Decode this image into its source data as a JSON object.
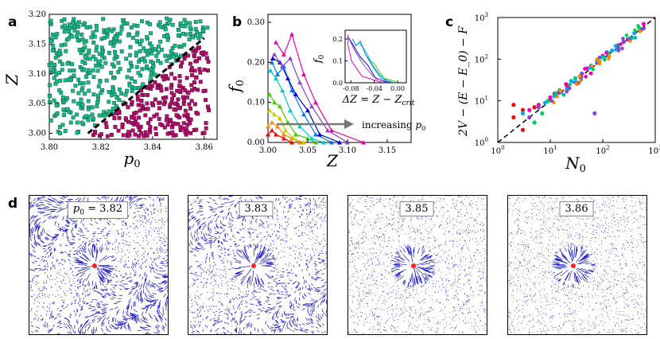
{
  "panels": {
    "a": {
      "label": "a",
      "xlabel": "p_0",
      "ylabel": "Z",
      "xticks": [
        "3.80",
        "3.82",
        "3.84",
        "3.86"
      ],
      "yticks": [
        "3.00",
        "3.05",
        "3.10",
        "3.15",
        "3.20"
      ]
    },
    "b": {
      "label": "b",
      "xlabel": "Z",
      "ylabel": "f_0",
      "xticks": [
        "3.00",
        "3.05",
        "3.10",
        "3.15"
      ],
      "yticks": [
        "0.00",
        "0.10",
        "0.20",
        "0.30"
      ],
      "arrow_text": "increasing p_0",
      "inset": {
        "xlabel": "ΔZ = Z − Z_crit",
        "ylabel": "f_0",
        "xticks": [
          "-0.08",
          "-0.04",
          "0.00"
        ],
        "yticks": [
          "0.0",
          "0.1",
          "0.2"
        ]
      }
    },
    "c": {
      "label": "c",
      "xlabel": "N_0",
      "ylabel": "2V − (E − E_0) − F",
      "xticks": [
        "10^0",
        "10^1",
        "10^2",
        "10^3"
      ],
      "yticks": [
        "10^0",
        "10^1",
        "10^2",
        "10^3"
      ]
    },
    "d": {
      "label": "d",
      "fields": [
        {
          "p0": "p_0 = 3.82"
        },
        {
          "p0": "3.83"
        },
        {
          "p0": "3.85"
        },
        {
          "p0": "3.86"
        }
      ]
    }
  },
  "chart_data": [
    {
      "type": "scatter",
      "panel": "a",
      "xlim": [
        3.8,
        3.865
      ],
      "ylim": [
        2.99,
        3.2
      ],
      "series": [],
      "boundary_line": {
        "x": [
          3.815,
          3.86
        ],
        "y": [
          3.0,
          3.16
        ],
        "style": "dashed"
      }
    },
    {
      "type": "line",
      "panel": "b",
      "xlim": [
        3.0,
        3.18
      ],
      "ylim": [
        0.0,
        0.32
      ],
      "series": [
        {
          "color": "#ff0000",
          "x": [
            3.0,
            3.005,
            3.01,
            3.02,
            3.03
          ],
          "y": [
            0.02,
            0.03,
            0.02,
            0.01,
            0.0
          ]
        },
        {
          "color": "#ff8800",
          "x": [
            3.0,
            3.005,
            3.012,
            3.02,
            3.03,
            3.04
          ],
          "y": [
            0.04,
            0.05,
            0.04,
            0.02,
            0.01,
            0.0
          ]
        },
        {
          "color": "#cccc00",
          "x": [
            3.002,
            3.008,
            3.015,
            3.022,
            3.032,
            3.045
          ],
          "y": [
            0.08,
            0.07,
            0.06,
            0.03,
            0.01,
            0.0
          ]
        },
        {
          "color": "#44cc00",
          "x": [
            3.002,
            3.008,
            3.015,
            3.025,
            3.035,
            3.05,
            3.06
          ],
          "y": [
            0.12,
            0.1,
            0.09,
            0.05,
            0.02,
            0.01,
            0.0
          ]
        },
        {
          "color": "#00cccc",
          "x": [
            3.003,
            3.01,
            3.018,
            3.028,
            3.04,
            3.055,
            3.07
          ],
          "y": [
            0.18,
            0.16,
            0.13,
            0.08,
            0.04,
            0.01,
            0.0
          ]
        },
        {
          "color": "#0077ff",
          "x": [
            3.005,
            3.012,
            3.02,
            3.03,
            3.045,
            3.06,
            3.08
          ],
          "y": [
            0.2,
            0.17,
            0.19,
            0.13,
            0.07,
            0.02,
            0.0
          ]
        },
        {
          "color": "#0000cc",
          "x": [
            3.006,
            3.015,
            3.025,
            3.035,
            3.05,
            3.065,
            3.09
          ],
          "y": [
            0.21,
            0.2,
            0.16,
            0.12,
            0.08,
            0.02,
            0.0
          ]
        },
        {
          "color": "#8844cc",
          "x": [
            3.008,
            3.018,
            3.028,
            3.04,
            3.055,
            3.075,
            3.1
          ],
          "y": [
            0.22,
            0.19,
            0.21,
            0.15,
            0.09,
            0.03,
            0.0
          ]
        },
        {
          "color": "#ee00aa",
          "x": [
            3.01,
            3.02,
            3.03,
            3.045,
            3.06,
            3.08,
            3.12
          ],
          "y": [
            0.25,
            0.22,
            0.27,
            0.17,
            0.1,
            0.03,
            0.0
          ]
        }
      ]
    },
    {
      "type": "scatter",
      "panel": "c",
      "xscale": "log",
      "yscale": "log",
      "xlim": [
        1,
        1000
      ],
      "ylim": [
        1,
        1000
      ],
      "series": [
        {
          "color": "#ff0000",
          "x": [
            2,
            2,
            3,
            3,
            5,
            5
          ],
          "y": [
            4,
            8,
            2,
            6,
            3,
            7
          ]
        },
        {
          "color": "#ee00aa",
          "x": [
            4,
            6,
            10,
            20,
            50,
            100,
            300,
            600
          ],
          "y": [
            6,
            8,
            12,
            25,
            60,
            120,
            300,
            700
          ]
        },
        {
          "color": "#00cc66",
          "x": [
            5,
            7,
            9,
            15,
            30,
            80,
            200,
            500
          ],
          "y": [
            3,
            5,
            10,
            18,
            35,
            90,
            220,
            550
          ]
        },
        {
          "color": "#00aaee",
          "x": [
            3,
            8,
            12,
            25,
            60,
            150,
            400
          ],
          "y": [
            5,
            9,
            13,
            30,
            70,
            160,
            420
          ]
        },
        {
          "color": "#8844cc",
          "x": [
            4,
            6,
            12,
            40,
            70,
            250
          ],
          "y": [
            4,
            7,
            15,
            45,
            5,
            260
          ]
        }
      ],
      "reference_line": {
        "x": [
          1,
          1000
        ],
        "y": [
          1,
          1000
        ],
        "style": "dashed"
      }
    }
  ]
}
